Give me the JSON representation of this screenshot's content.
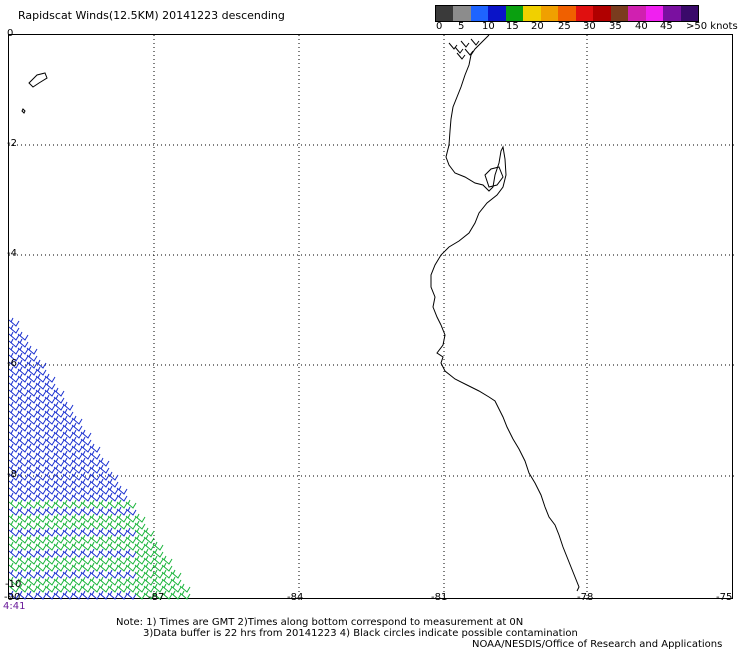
{
  "title": "Rapidscat Winds(12.5KM) 20141223 descending",
  "scale": {
    "colors": [
      "#3a3a3a",
      "#8c8c8c",
      "#1e64ff",
      "#0a14c8",
      "#0aa010",
      "#f0d000",
      "#f0a000",
      "#f06000",
      "#e01010",
      "#b00000",
      "#7a3c1e",
      "#d020b0",
      "#f020f0",
      "#7a10a0",
      "#3a0a6a"
    ],
    "labels": [
      "0",
      "5",
      "10",
      "15",
      "20",
      "25",
      "30",
      "35",
      "40",
      "45",
      ">50 knots"
    ]
  },
  "axes": {
    "x_labels": [
      "-90",
      "-87",
      "-84",
      "-81",
      "-78",
      "-75"
    ],
    "y_labels": [
      "0",
      "-2",
      "-4",
      "-6",
      "-8",
      "-10"
    ]
  },
  "time_label": "4:41",
  "notes": {
    "line1": "Note: 1) Times are GMT 2)Times along bottom correspond to measurement at 0N",
    "line2": "3)Data buffer is 22 hrs from 20141223 4) Black circles indicate possible contamination",
    "credit": "NOAA/NESDIS/Office of Research and Applications"
  }
}
